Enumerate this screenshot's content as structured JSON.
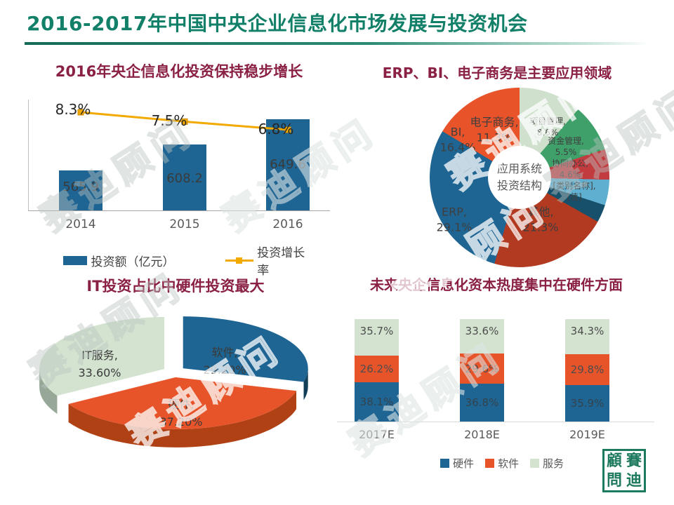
{
  "page": {
    "title": "2016-2017年中国中央企业信息化市场发展与投资机会"
  },
  "watermark_text": "赛迪顾问",
  "logo_chars": [
    "顧",
    "賽",
    "問",
    "迪"
  ],
  "colors": {
    "brand_green": "#128068",
    "heading_maroon": "#8a2144",
    "bar_blue": "#1f6593",
    "line_gold": "#f2a900",
    "orange": "#e8542a",
    "pale_green": "#d3e3d0"
  },
  "chart_data": [
    {
      "type": "bar",
      "variant": "bar-with-line",
      "title": "2016年央企信息化投资保持稳步增长",
      "categories": [
        "2014",
        "2015",
        "2016"
      ],
      "series": [
        {
          "name": "投资额（亿元）",
          "kind": "bar",
          "color": "#1f6593",
          "values": [
            565.9,
            608.2,
            649.6
          ],
          "labels": [
            "565.9",
            "608.2",
            "649.6"
          ]
        },
        {
          "name": "投资增长率",
          "kind": "line",
          "color": "#f2a900",
          "values": [
            8.3,
            7.5,
            6.8
          ],
          "labels": [
            "8.3%",
            "7.5%",
            "6.8%"
          ]
        }
      ],
      "ylim": [
        500,
        700
      ],
      "grid": false,
      "legend_position": "bottom"
    },
    {
      "type": "pie",
      "variant": "donut",
      "title": "ERP、BI、电子商务是主要应用领域",
      "center_label_line1": "应用系统",
      "center_label_line2": "投资结构",
      "start_angle_deg": 0,
      "direction": "clockwise",
      "slices": [
        {
          "label": "电子商务",
          "pct_label": "11.3%",
          "value": 11.3,
          "color": "#cfe0cd"
        },
        {
          "label": "项目管理",
          "pct_label": "8.6%",
          "value": 8.6,
          "color": "#3fa06a"
        },
        {
          "label": "资金管理",
          "pct_label": "5.5%",
          "value": 5.5,
          "color": "#c23b3f"
        },
        {
          "label": "协同办公",
          "pct_label": "4.6%",
          "value": 4.6,
          "color": "#5fafd0"
        },
        {
          "label": "[类别名称]",
          "pct_label": "[值]",
          "value": 3.2,
          "color": "#17506a"
        },
        {
          "label": "其他",
          "pct_label": "21.3%",
          "value": 21.3,
          "color": "#b13a21"
        },
        {
          "label": "ERP",
          "pct_label": "29.1%",
          "value": 29.1,
          "color": "#1f6593"
        },
        {
          "label": "BI",
          "pct_label": "16.4%",
          "value": 16.4,
          "color": "#e8532a"
        }
      ]
    },
    {
      "type": "pie",
      "variant": "3d-exploded",
      "title": "IT投资占比中硬件投资最大",
      "start_angle_deg": 0,
      "slices": [
        {
          "label": "软件",
          "pct_label": "29.20%",
          "value": 29.2,
          "color": "#1f6593",
          "side_color": "#123e58"
        },
        {
          "label": "硬件",
          "pct_label": "37.20%",
          "value": 37.2,
          "color": "#e8542a",
          "side_color": "#b04115"
        },
        {
          "label": "IT服务",
          "pct_label": "33.60%",
          "value": 33.6,
          "color": "#d3e3d0",
          "side_color": "#97a898"
        }
      ]
    },
    {
      "type": "bar",
      "variant": "stacked-100",
      "title": "未来央企信息化资本热度集中在硬件方面",
      "categories": [
        "2017E",
        "2018E",
        "2019E"
      ],
      "series": [
        {
          "name": "硬件",
          "color": "#1f6593",
          "values": [
            38.1,
            36.8,
            35.9
          ],
          "labels": [
            "38.1%",
            "36.8%",
            "35.9%"
          ]
        },
        {
          "name": "软件",
          "color": "#e8542a",
          "values": [
            26.2,
            29.6,
            29.8
          ],
          "labels": [
            "26.2%",
            "29.6%",
            "29.8%"
          ]
        },
        {
          "name": "服务",
          "color": "#d3e3d0",
          "values": [
            35.7,
            33.6,
            34.3
          ],
          "labels": [
            "35.7%",
            "33.6%",
            "34.3%"
          ]
        }
      ],
      "legend_position": "bottom"
    }
  ]
}
